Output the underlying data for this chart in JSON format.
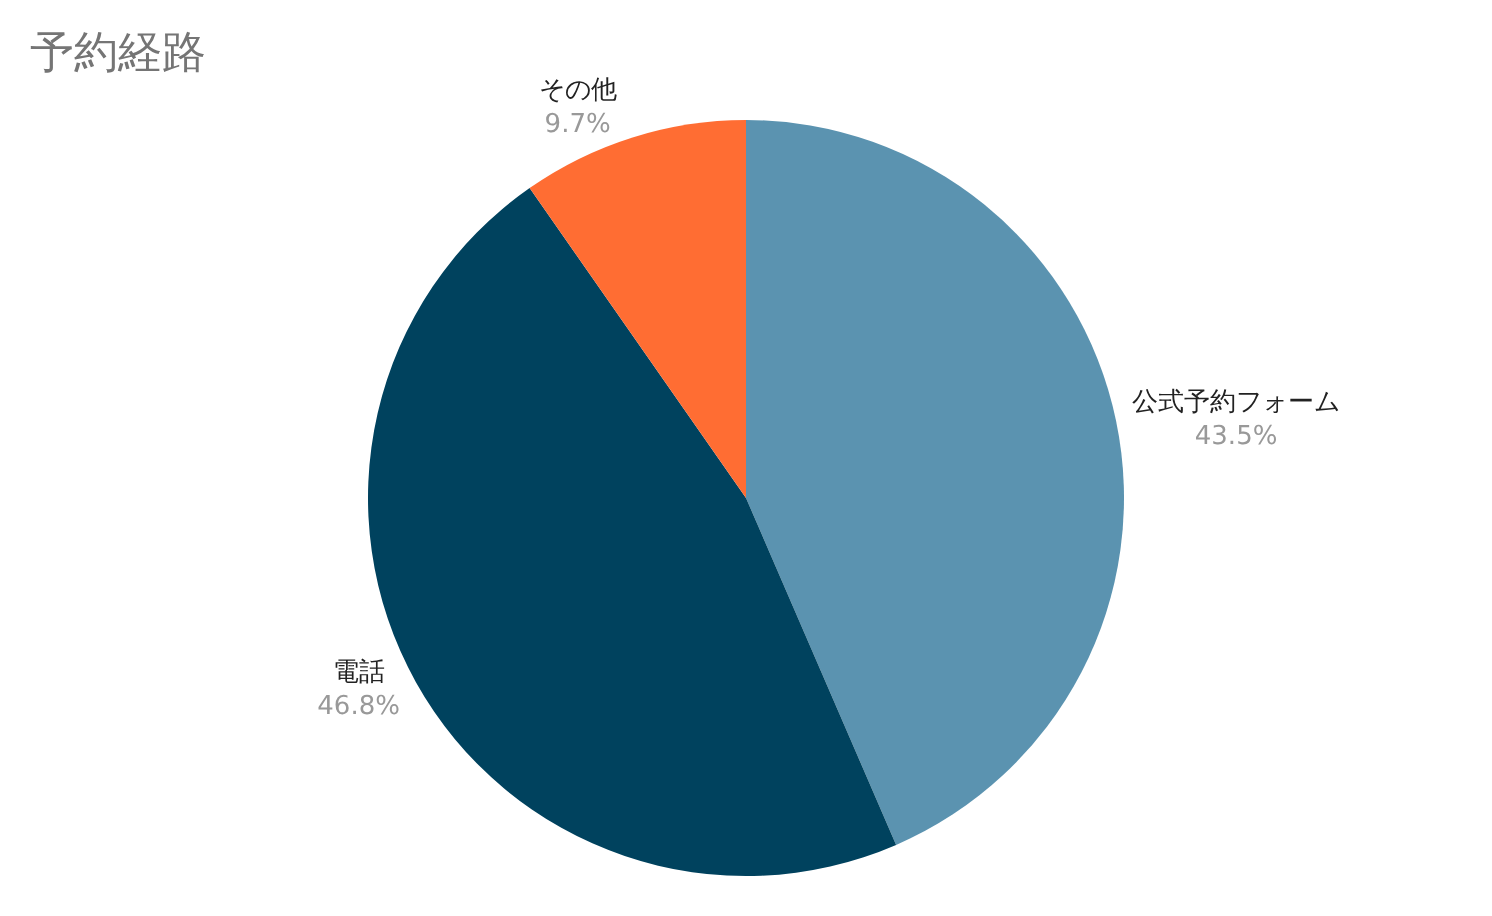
{
  "chart_data": {
    "type": "pie",
    "title": "予約経路",
    "categories": [
      "公式予約フォーム",
      "電話",
      "その他"
    ],
    "values": [
      43.5,
      46.8,
      9.7
    ],
    "colors": [
      "#5b93b0",
      "#00425e",
      "#ff6d33"
    ],
    "value_labels": [
      "43.5%",
      "46.8%",
      "9.7%"
    ],
    "legend": false
  }
}
